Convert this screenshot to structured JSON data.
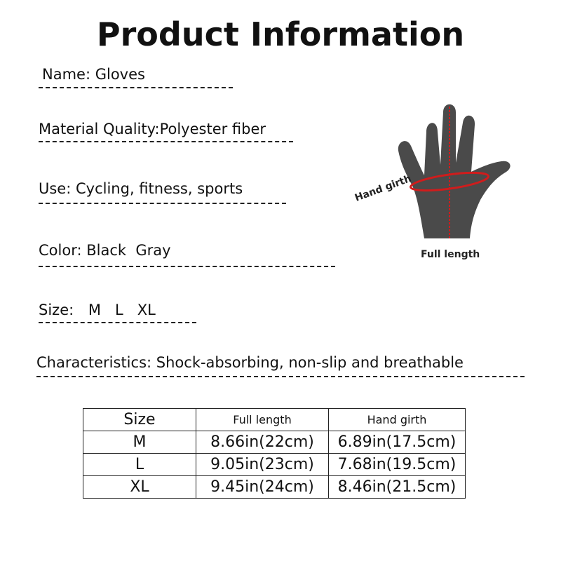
{
  "title": "Product Information",
  "fields": [
    {
      "label": "Name:",
      "value": "Gloves"
    },
    {
      "label": "Material Quality:",
      "value": "Polyester fiber"
    },
    {
      "label": "Use:",
      "value": "Cycling, fitness, sports"
    },
    {
      "label": "Color:",
      "value": "Black  Gray"
    },
    {
      "label": "Size:",
      "value": "M   L   XL"
    },
    {
      "label": "Characteristics:",
      "value": "Shock-absorbing, non-slip and breathable"
    }
  ],
  "diagram": {
    "hand_girth": "Hand girth",
    "full_length": "Full length",
    "glove_color": "#4a4a4a",
    "measure_color": "#d01c1c"
  },
  "table": {
    "headers": [
      "Size",
      "Full length",
      "Hand girth"
    ],
    "rows": [
      [
        "M",
        "8.66in(22cm)",
        "6.89in(17.5cm)"
      ],
      [
        "L",
        "9.05in(23cm)",
        "7.68in(19.5cm)"
      ],
      [
        "XL",
        "9.45in(24cm)",
        "8.46in(21.5cm)"
      ]
    ]
  }
}
